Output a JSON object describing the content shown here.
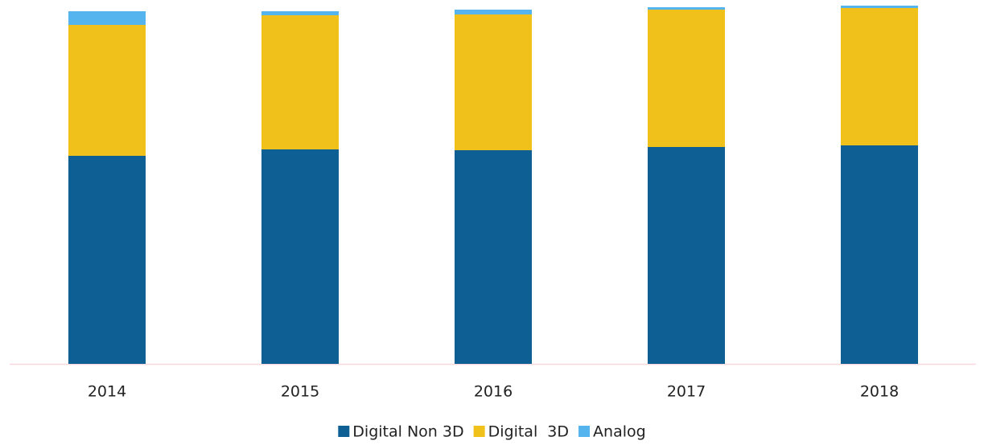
{
  "chart_data": {
    "type": "stacked-bar",
    "categories": [
      "2014",
      "2015",
      "2016",
      "2017",
      "2018"
    ],
    "series": [
      {
        "name": "Digital Non 3D",
        "color": "#0e5f94",
        "values": [
          259,
          267,
          266,
          270,
          272
        ]
      },
      {
        "name": "Digital  3D",
        "color": "#f0c11a",
        "values": [
          163,
          167,
          169,
          171,
          171
        ]
      },
      {
        "name": "Analog",
        "color": "#55b4ee",
        "values": [
          17,
          5,
          6,
          3,
          3
        ]
      }
    ],
    "ylim": [
      0,
      450
    ],
    "legend": "bottom"
  }
}
